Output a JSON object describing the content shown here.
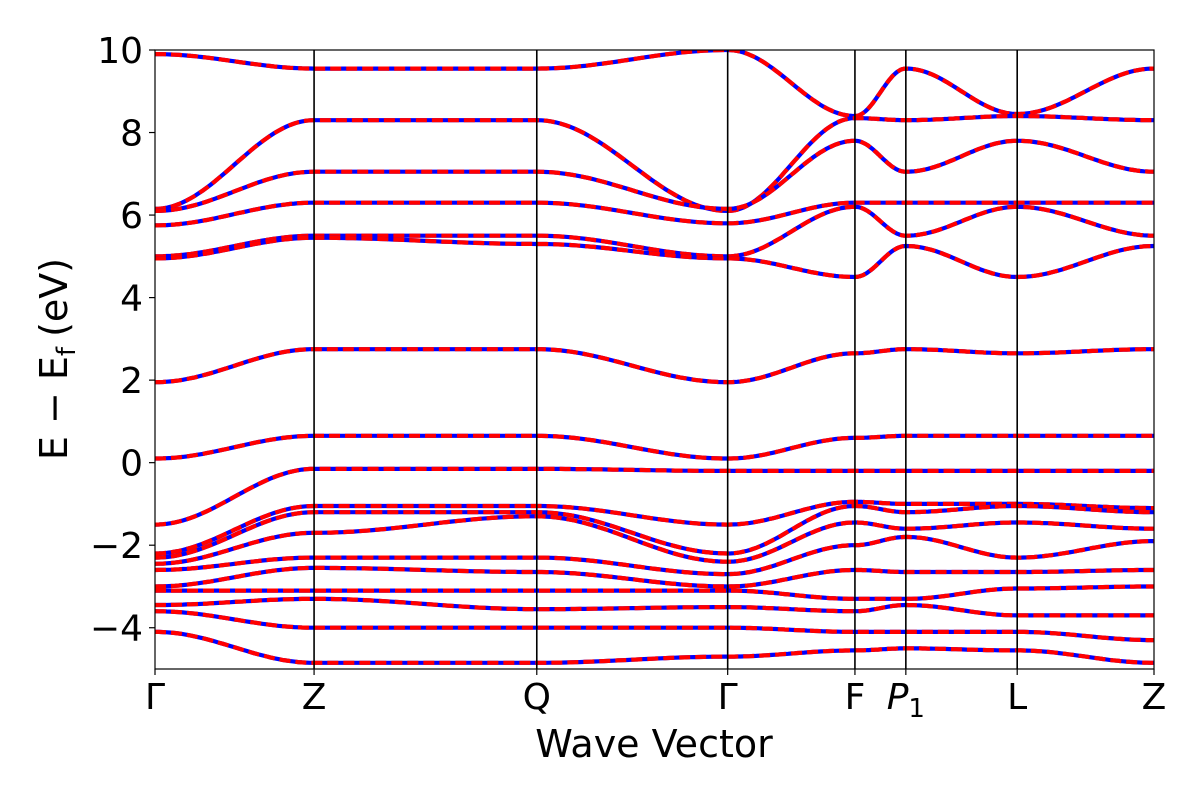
{
  "chart_data": {
    "type": "line",
    "xlabel": "Wave Vector",
    "ylabel": "E − E_f (eV)",
    "ylabel_parts": {
      "main": "E − E",
      "sub": "f",
      "unit": "(eV)"
    },
    "ylim": [
      -5,
      10
    ],
    "yticks": [
      -4,
      -2,
      0,
      2,
      4,
      6,
      8,
      10
    ],
    "ytick_labels": [
      "−4",
      "−2",
      "0",
      "2",
      "4",
      "6",
      "8",
      "10"
    ],
    "kpoints": [
      {
        "label": "Γ",
        "x": 0.0
      },
      {
        "label": "Z",
        "x": 1.0
      },
      {
        "label": "Q",
        "x": 2.4
      },
      {
        "label": "Γ",
        "x": 3.6
      },
      {
        "label": "F",
        "x": 4.4
      },
      {
        "label": "P1",
        "label_main": "P",
        "label_sub": "1",
        "italic": true,
        "x": 4.72
      },
      {
        "label": "L",
        "x": 5.42
      },
      {
        "label": "Z",
        "x": 6.28
      }
    ],
    "xlim": [
      0.0,
      6.28
    ],
    "grid": false,
    "legend": "none",
    "series_style": [
      {
        "color": "#0000ff",
        "style": "solid"
      },
      {
        "color": "#ff0000",
        "style": "dashed"
      }
    ],
    "x": [
      0.0,
      1.0,
      2.4,
      3.6,
      4.4,
      4.72,
      5.42,
      6.28
    ],
    "bands": [
      [
        9.9,
        9.55,
        9.55,
        10.0,
        8.4,
        9.55,
        8.45,
        9.55
      ],
      [
        6.15,
        8.3,
        8.3,
        6.1,
        8.35,
        8.3,
        8.4,
        8.3
      ],
      [
        6.1,
        7.05,
        7.05,
        6.15,
        7.8,
        7.05,
        7.8,
        7.05
      ],
      [
        5.75,
        6.3,
        6.3,
        5.8,
        6.3,
        6.3,
        6.3,
        6.3
      ],
      [
        5.0,
        5.5,
        5.5,
        5.0,
        6.2,
        5.5,
        6.2,
        5.5
      ],
      [
        4.95,
        5.45,
        5.3,
        4.95,
        4.5,
        5.25,
        4.5,
        5.25
      ],
      [
        1.95,
        2.75,
        2.75,
        1.95,
        2.65,
        2.75,
        2.65,
        2.75
      ],
      [
        0.1,
        0.65,
        0.65,
        0.1,
        0.6,
        0.65,
        0.65,
        0.65
      ],
      [
        -1.5,
        -0.15,
        -0.15,
        -0.2,
        -0.2,
        -0.2,
        -0.2,
        -0.2
      ],
      [
        -2.2,
        -1.05,
        -1.05,
        -1.5,
        -0.95,
        -1.0,
        -1.0,
        -1.1
      ],
      [
        -2.3,
        -1.2,
        -1.2,
        -2.2,
        -1.05,
        -1.2,
        -1.05,
        -1.2
      ],
      [
        -2.45,
        -1.7,
        -1.3,
        -2.4,
        -1.45,
        -1.6,
        -1.45,
        -1.6
      ],
      [
        -2.6,
        -2.3,
        -2.3,
        -2.7,
        -2.0,
        -1.8,
        -2.3,
        -1.9
      ],
      [
        -3.0,
        -2.55,
        -2.65,
        -3.0,
        -2.6,
        -2.65,
        -2.65,
        -2.6
      ],
      [
        -3.1,
        -3.1,
        -3.1,
        -3.1,
        -3.3,
        -3.3,
        -3.05,
        -3.0
      ],
      [
        -3.45,
        -3.3,
        -3.55,
        -3.5,
        -3.6,
        -3.45,
        -3.7,
        -3.7
      ],
      [
        -3.6,
        -4.0,
        -4.0,
        -4.0,
        -4.1,
        -4.1,
        -4.1,
        -4.3
      ],
      [
        -4.1,
        -4.85,
        -4.85,
        -4.7,
        -4.55,
        -4.5,
        -4.55,
        -4.85
      ]
    ]
  }
}
